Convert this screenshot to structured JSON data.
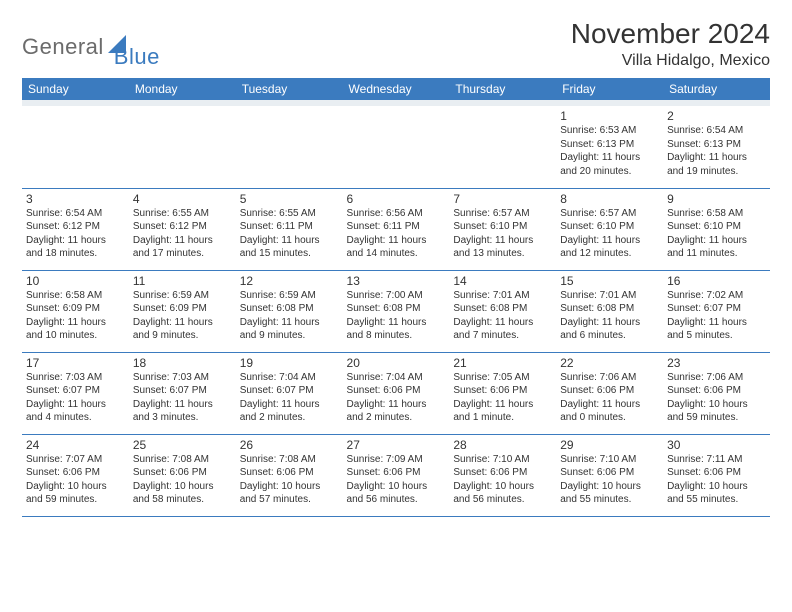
{
  "logo": {
    "text1": "General",
    "text2": "Blue"
  },
  "title": "November 2024",
  "location": "Villa Hidalgo, Mexico",
  "colors": {
    "header_bg": "#3b7bbf",
    "header_fg": "#ffffff",
    "spacer_bg": "#e9eef2",
    "border": "#3b7bbf",
    "text": "#333333",
    "logo_gray": "#6b6b6b",
    "logo_blue": "#3b7bbf",
    "page_bg": "#ffffff"
  },
  "day_headers": [
    "Sunday",
    "Monday",
    "Tuesday",
    "Wednesday",
    "Thursday",
    "Friday",
    "Saturday"
  ],
  "weeks": [
    [
      null,
      null,
      null,
      null,
      null,
      {
        "n": "1",
        "sr": "Sunrise: 6:53 AM",
        "ss": "Sunset: 6:13 PM",
        "d1": "Daylight: 11 hours",
        "d2": "and 20 minutes."
      },
      {
        "n": "2",
        "sr": "Sunrise: 6:54 AM",
        "ss": "Sunset: 6:13 PM",
        "d1": "Daylight: 11 hours",
        "d2": "and 19 minutes."
      }
    ],
    [
      {
        "n": "3",
        "sr": "Sunrise: 6:54 AM",
        "ss": "Sunset: 6:12 PM",
        "d1": "Daylight: 11 hours",
        "d2": "and 18 minutes."
      },
      {
        "n": "4",
        "sr": "Sunrise: 6:55 AM",
        "ss": "Sunset: 6:12 PM",
        "d1": "Daylight: 11 hours",
        "d2": "and 17 minutes."
      },
      {
        "n": "5",
        "sr": "Sunrise: 6:55 AM",
        "ss": "Sunset: 6:11 PM",
        "d1": "Daylight: 11 hours",
        "d2": "and 15 minutes."
      },
      {
        "n": "6",
        "sr": "Sunrise: 6:56 AM",
        "ss": "Sunset: 6:11 PM",
        "d1": "Daylight: 11 hours",
        "d2": "and 14 minutes."
      },
      {
        "n": "7",
        "sr": "Sunrise: 6:57 AM",
        "ss": "Sunset: 6:10 PM",
        "d1": "Daylight: 11 hours",
        "d2": "and 13 minutes."
      },
      {
        "n": "8",
        "sr": "Sunrise: 6:57 AM",
        "ss": "Sunset: 6:10 PM",
        "d1": "Daylight: 11 hours",
        "d2": "and 12 minutes."
      },
      {
        "n": "9",
        "sr": "Sunrise: 6:58 AM",
        "ss": "Sunset: 6:10 PM",
        "d1": "Daylight: 11 hours",
        "d2": "and 11 minutes."
      }
    ],
    [
      {
        "n": "10",
        "sr": "Sunrise: 6:58 AM",
        "ss": "Sunset: 6:09 PM",
        "d1": "Daylight: 11 hours",
        "d2": "and 10 minutes."
      },
      {
        "n": "11",
        "sr": "Sunrise: 6:59 AM",
        "ss": "Sunset: 6:09 PM",
        "d1": "Daylight: 11 hours",
        "d2": "and 9 minutes."
      },
      {
        "n": "12",
        "sr": "Sunrise: 6:59 AM",
        "ss": "Sunset: 6:08 PM",
        "d1": "Daylight: 11 hours",
        "d2": "and 9 minutes."
      },
      {
        "n": "13",
        "sr": "Sunrise: 7:00 AM",
        "ss": "Sunset: 6:08 PM",
        "d1": "Daylight: 11 hours",
        "d2": "and 8 minutes."
      },
      {
        "n": "14",
        "sr": "Sunrise: 7:01 AM",
        "ss": "Sunset: 6:08 PM",
        "d1": "Daylight: 11 hours",
        "d2": "and 7 minutes."
      },
      {
        "n": "15",
        "sr": "Sunrise: 7:01 AM",
        "ss": "Sunset: 6:08 PM",
        "d1": "Daylight: 11 hours",
        "d2": "and 6 minutes."
      },
      {
        "n": "16",
        "sr": "Sunrise: 7:02 AM",
        "ss": "Sunset: 6:07 PM",
        "d1": "Daylight: 11 hours",
        "d2": "and 5 minutes."
      }
    ],
    [
      {
        "n": "17",
        "sr": "Sunrise: 7:03 AM",
        "ss": "Sunset: 6:07 PM",
        "d1": "Daylight: 11 hours",
        "d2": "and 4 minutes."
      },
      {
        "n": "18",
        "sr": "Sunrise: 7:03 AM",
        "ss": "Sunset: 6:07 PM",
        "d1": "Daylight: 11 hours",
        "d2": "and 3 minutes."
      },
      {
        "n": "19",
        "sr": "Sunrise: 7:04 AM",
        "ss": "Sunset: 6:07 PM",
        "d1": "Daylight: 11 hours",
        "d2": "and 2 minutes."
      },
      {
        "n": "20",
        "sr": "Sunrise: 7:04 AM",
        "ss": "Sunset: 6:06 PM",
        "d1": "Daylight: 11 hours",
        "d2": "and 2 minutes."
      },
      {
        "n": "21",
        "sr": "Sunrise: 7:05 AM",
        "ss": "Sunset: 6:06 PM",
        "d1": "Daylight: 11 hours",
        "d2": "and 1 minute."
      },
      {
        "n": "22",
        "sr": "Sunrise: 7:06 AM",
        "ss": "Sunset: 6:06 PM",
        "d1": "Daylight: 11 hours",
        "d2": "and 0 minutes."
      },
      {
        "n": "23",
        "sr": "Sunrise: 7:06 AM",
        "ss": "Sunset: 6:06 PM",
        "d1": "Daylight: 10 hours",
        "d2": "and 59 minutes."
      }
    ],
    [
      {
        "n": "24",
        "sr": "Sunrise: 7:07 AM",
        "ss": "Sunset: 6:06 PM",
        "d1": "Daylight: 10 hours",
        "d2": "and 59 minutes."
      },
      {
        "n": "25",
        "sr": "Sunrise: 7:08 AM",
        "ss": "Sunset: 6:06 PM",
        "d1": "Daylight: 10 hours",
        "d2": "and 58 minutes."
      },
      {
        "n": "26",
        "sr": "Sunrise: 7:08 AM",
        "ss": "Sunset: 6:06 PM",
        "d1": "Daylight: 10 hours",
        "d2": "and 57 minutes."
      },
      {
        "n": "27",
        "sr": "Sunrise: 7:09 AM",
        "ss": "Sunset: 6:06 PM",
        "d1": "Daylight: 10 hours",
        "d2": "and 56 minutes."
      },
      {
        "n": "28",
        "sr": "Sunrise: 7:10 AM",
        "ss": "Sunset: 6:06 PM",
        "d1": "Daylight: 10 hours",
        "d2": "and 56 minutes."
      },
      {
        "n": "29",
        "sr": "Sunrise: 7:10 AM",
        "ss": "Sunset: 6:06 PM",
        "d1": "Daylight: 10 hours",
        "d2": "and 55 minutes."
      },
      {
        "n": "30",
        "sr": "Sunrise: 7:11 AM",
        "ss": "Sunset: 6:06 PM",
        "d1": "Daylight: 10 hours",
        "d2": "and 55 minutes."
      }
    ]
  ]
}
